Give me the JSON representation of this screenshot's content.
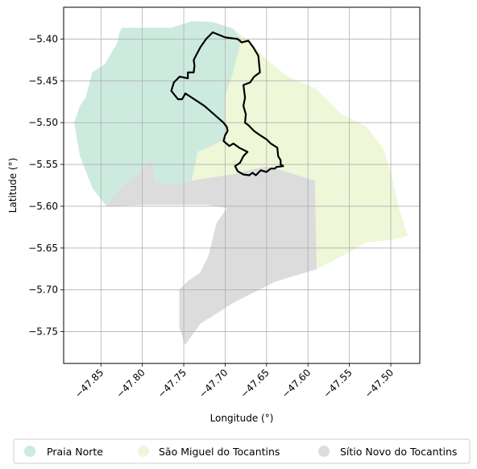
{
  "chart_data": {
    "type": "map",
    "xlabel": "Longitude (°)",
    "ylabel": "Latitude (°)",
    "xlim": [
      -47.895,
      -47.465
    ],
    "ylim": [
      -5.788,
      -5.362
    ],
    "grid": true,
    "legend_placement": "bottom-center",
    "x_ticks": [
      -47.85,
      -47.8,
      -47.75,
      -47.7,
      -47.65,
      -47.6,
      -47.55,
      -47.5
    ],
    "x_tick_labels": [
      "−47.85",
      "−47.80",
      "−47.75",
      "−47.70",
      "−47.65",
      "−47.60",
      "−47.55",
      "−47.50"
    ],
    "y_ticks": [
      -5.4,
      -5.45,
      -5.5,
      -5.55,
      -5.6,
      -5.65,
      -5.7,
      -5.75
    ],
    "y_tick_labels": [
      "−5.40",
      "−5.45",
      "−5.50",
      "−5.55",
      "−5.60",
      "−5.65",
      "−5.70",
      "−5.75"
    ],
    "regions": [
      {
        "name": "Praia Norte",
        "color": "#cdeadf",
        "polygon": [
          [
            -47.825,
            -5.387
          ],
          [
            -47.765,
            -5.387
          ],
          [
            -47.74,
            -5.379
          ],
          [
            -47.715,
            -5.38
          ],
          [
            -47.69,
            -5.388
          ],
          [
            -47.68,
            -5.4
          ],
          [
            -47.69,
            -5.44
          ],
          [
            -47.7,
            -5.47
          ],
          [
            -47.7,
            -5.52
          ],
          [
            -47.72,
            -5.53
          ],
          [
            -47.733,
            -5.535
          ],
          [
            -47.738,
            -5.57
          ],
          [
            -47.76,
            -5.575
          ],
          [
            -47.785,
            -5.572
          ],
          [
            -47.79,
            -5.545
          ],
          [
            -47.803,
            -5.56
          ],
          [
            -47.828,
            -5.58
          ],
          [
            -47.843,
            -5.6
          ],
          [
            -47.86,
            -5.578
          ],
          [
            -47.875,
            -5.54
          ],
          [
            -47.882,
            -5.5
          ],
          [
            -47.875,
            -5.48
          ],
          [
            -47.868,
            -5.47
          ],
          [
            -47.86,
            -5.44
          ],
          [
            -47.845,
            -5.43
          ],
          [
            -47.83,
            -5.405
          ],
          [
            -47.828,
            -5.395
          ]
        ]
      },
      {
        "name": "São Miguel do Tocantins",
        "color": "#eef7d8",
        "polygon": [
          [
            -47.69,
            -5.388
          ],
          [
            -47.675,
            -5.4
          ],
          [
            -47.65,
            -5.425
          ],
          [
            -47.625,
            -5.445
          ],
          [
            -47.59,
            -5.46
          ],
          [
            -47.56,
            -5.49
          ],
          [
            -47.53,
            -5.505
          ],
          [
            -47.51,
            -5.53
          ],
          [
            -47.5,
            -5.56
          ],
          [
            -47.49,
            -5.605
          ],
          [
            -47.48,
            -5.635
          ],
          [
            -47.5,
            -5.64
          ],
          [
            -47.53,
            -5.643
          ],
          [
            -47.56,
            -5.66
          ],
          [
            -47.59,
            -5.675
          ],
          [
            -47.592,
            -5.57
          ],
          [
            -47.63,
            -5.558
          ],
          [
            -47.65,
            -5.553
          ],
          [
            -47.67,
            -5.557
          ],
          [
            -47.69,
            -5.562
          ],
          [
            -47.71,
            -5.565
          ],
          [
            -47.73,
            -5.568
          ],
          [
            -47.74,
            -5.57
          ],
          [
            -47.733,
            -5.535
          ],
          [
            -47.72,
            -5.53
          ],
          [
            -47.7,
            -5.52
          ],
          [
            -47.7,
            -5.47
          ],
          [
            -47.69,
            -5.44
          ],
          [
            -47.68,
            -5.4
          ]
        ]
      },
      {
        "name": "Sítio Novo do Tocantins",
        "color": "#dcdcdc",
        "polygon": [
          [
            -47.843,
            -5.6
          ],
          [
            -47.828,
            -5.58
          ],
          [
            -47.803,
            -5.56
          ],
          [
            -47.79,
            -5.545
          ],
          [
            -47.785,
            -5.572
          ],
          [
            -47.76,
            -5.575
          ],
          [
            -47.74,
            -5.57
          ],
          [
            -47.73,
            -5.568
          ],
          [
            -47.71,
            -5.565
          ],
          [
            -47.69,
            -5.562
          ],
          [
            -47.67,
            -5.557
          ],
          [
            -47.65,
            -5.553
          ],
          [
            -47.63,
            -5.558
          ],
          [
            -47.592,
            -5.57
          ],
          [
            -47.59,
            -5.675
          ],
          [
            -47.64,
            -5.69
          ],
          [
            -47.69,
            -5.715
          ],
          [
            -47.73,
            -5.74
          ],
          [
            -47.748,
            -5.765
          ],
          [
            -47.755,
            -5.745
          ],
          [
            -47.755,
            -5.7
          ],
          [
            -47.745,
            -5.69
          ],
          [
            -47.73,
            -5.68
          ],
          [
            -47.72,
            -5.66
          ],
          [
            -47.71,
            -5.62
          ],
          [
            -47.697,
            -5.602
          ],
          [
            -47.72,
            -5.598
          ],
          [
            -47.76,
            -5.598
          ],
          [
            -47.8,
            -5.598
          ],
          [
            -47.84,
            -5.6
          ]
        ]
      }
    ],
    "boundary_outline": {
      "color": "#000000",
      "polygon": [
        [
          -47.73,
          -5.41
        ],
        [
          -47.723,
          -5.4
        ],
        [
          -47.715,
          -5.392
        ],
        [
          -47.7,
          -5.398
        ],
        [
          -47.685,
          -5.4
        ],
        [
          -47.68,
          -5.404
        ],
        [
          -47.672,
          -5.402
        ],
        [
          -47.666,
          -5.41
        ],
        [
          -47.66,
          -5.42
        ],
        [
          -47.658,
          -5.44
        ],
        [
          -47.665,
          -5.445
        ],
        [
          -47.67,
          -5.452
        ],
        [
          -47.678,
          -5.455
        ],
        [
          -47.676,
          -5.47
        ],
        [
          -47.678,
          -5.48
        ],
        [
          -47.675,
          -5.49
        ],
        [
          -47.676,
          -5.5
        ],
        [
          -47.672,
          -5.503
        ],
        [
          -47.665,
          -5.51
        ],
        [
          -47.658,
          -5.515
        ],
        [
          -47.65,
          -5.52
        ],
        [
          -47.645,
          -5.525
        ],
        [
          -47.637,
          -5.53
        ],
        [
          -47.636,
          -5.54
        ],
        [
          -47.633,
          -5.545
        ],
        [
          -47.633,
          -5.55
        ],
        [
          -47.63,
          -5.552
        ],
        [
          -47.638,
          -5.553
        ],
        [
          -47.64,
          -5.555
        ],
        [
          -47.645,
          -5.555
        ],
        [
          -47.65,
          -5.559
        ],
        [
          -47.657,
          -5.557
        ],
        [
          -47.663,
          -5.563
        ],
        [
          -47.667,
          -5.56
        ],
        [
          -47.671,
          -5.563
        ],
        [
          -47.678,
          -5.562
        ],
        [
          -47.685,
          -5.558
        ],
        [
          -47.688,
          -5.552
        ],
        [
          -47.682,
          -5.548
        ],
        [
          -47.678,
          -5.54
        ],
        [
          -47.673,
          -5.535
        ],
        [
          -47.683,
          -5.53
        ],
        [
          -47.69,
          -5.525
        ],
        [
          -47.695,
          -5.528
        ],
        [
          -47.702,
          -5.522
        ],
        [
          -47.7,
          -5.515
        ],
        [
          -47.697,
          -5.51
        ],
        [
          -47.698,
          -5.505
        ],
        [
          -47.702,
          -5.5
        ],
        [
          -47.725,
          -5.48
        ],
        [
          -47.748,
          -5.465
        ],
        [
          -47.752,
          -5.472
        ],
        [
          -47.757,
          -5.472
        ],
        [
          -47.765,
          -5.462
        ],
        [
          -47.762,
          -5.452
        ],
        [
          -47.755,
          -5.445
        ],
        [
          -47.745,
          -5.447
        ],
        [
          -47.745,
          -5.44
        ],
        [
          -47.738,
          -5.44
        ],
        [
          -47.737,
          -5.432
        ],
        [
          -47.738,
          -5.425
        ]
      ]
    }
  },
  "legend": {
    "items": [
      {
        "label": "Praia Norte",
        "color": "#cdeadf"
      },
      {
        "label": "São Miguel do Tocantins",
        "color": "#eef7d8"
      },
      {
        "label": "Sítio Novo do Tocantins",
        "color": "#dcdcdc"
      }
    ]
  }
}
